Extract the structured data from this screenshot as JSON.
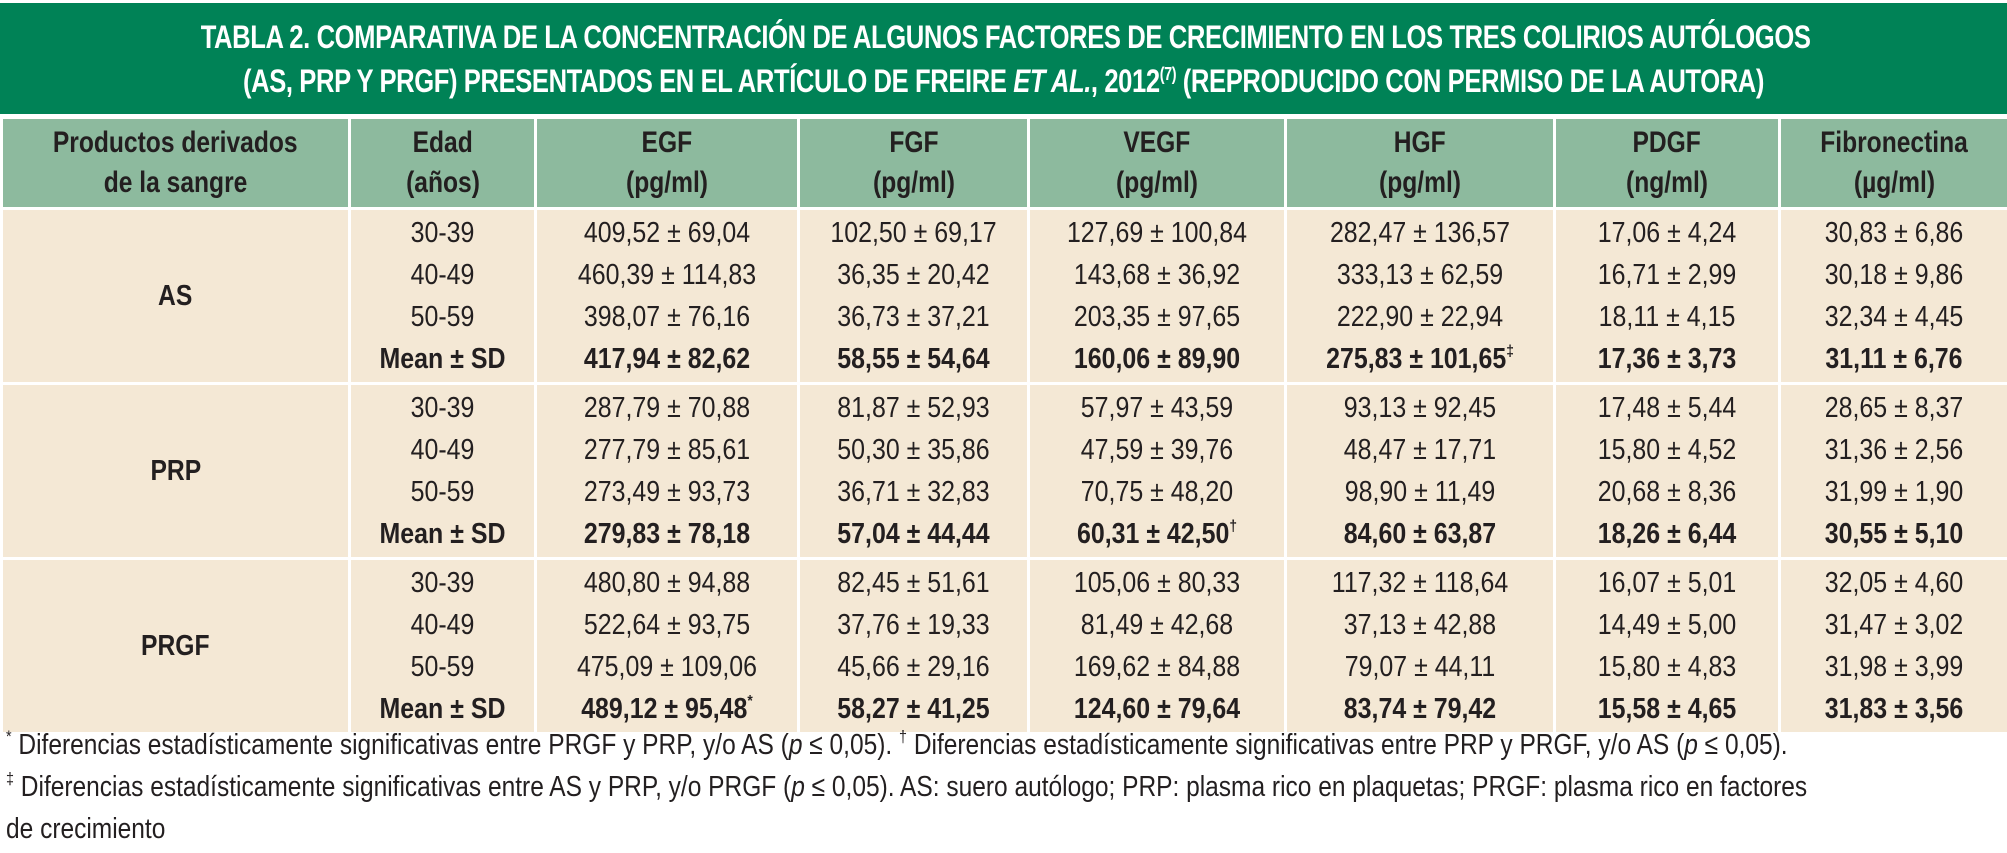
{
  "title": {
    "line1": "TABLA 2. COMPARATIVA DE LA CONCENTRACIÓN DE ALGUNOS FACTORES DE CRECIMIENTO EN LOS TRES COLIRIOS AUTÓLOGOS",
    "line2_before_italic": "(AS, PRP Y PRGF) PRESENTADOS EN EL ARTÍCULO DE FREIRE ",
    "line2_italic": "ET AL.",
    "line2_year": ", 2012",
    "line2_ref": "(7)",
    "line2_after": " (REPRODUCIDO CON PERMISO DE LA AUTORA)"
  },
  "colors": {
    "title_bg": "#008256",
    "header_bg": "#8dba9e",
    "body_bg": "#f4e8d5",
    "text": "#231f20"
  },
  "columns": [
    {
      "line1": "Productos derivados",
      "line2": "de la sangre"
    },
    {
      "line1": "Edad",
      "line2": "(años)"
    },
    {
      "line1": "EGF",
      "line2": "(pg/ml)"
    },
    {
      "line1": "FGF",
      "line2": "(pg/ml)"
    },
    {
      "line1": "VEGF",
      "line2": "(pg/ml)"
    },
    {
      "line1": "HGF",
      "line2": "(pg/ml)"
    },
    {
      "line1": "PDGF",
      "line2": "(ng/ml)"
    },
    {
      "line1": "Fibronectina",
      "line2": "(µg/ml)"
    }
  ],
  "groups": [
    {
      "name": "AS",
      "ages": [
        "30-39",
        "40-49",
        "50-59",
        "Mean ± SD"
      ],
      "EGF": [
        "409,52 ± 69,04",
        "460,39 ± 114,83",
        "398,07 ± 76,16",
        "417,94 ± 82,62"
      ],
      "FGF": [
        "102,50 ± 69,17",
        "36,35 ± 20,42",
        "36,73 ± 37,21",
        "58,55 ± 54,64"
      ],
      "VEGF": [
        "127,69 ± 100,84",
        "143,68 ± 36,92",
        "203,35 ± 97,65",
        "160,06 ± 89,90"
      ],
      "HGF": [
        "282,47 ± 136,57",
        "333,13 ± 62,59",
        "222,90 ± 22,94",
        "275,83 ± 101,65"
      ],
      "PDGF": [
        "17,06 ± 4,24",
        "16,71 ± 2,99",
        "18,11 ± 4,15",
        "17,36 ± 3,73"
      ],
      "Fibronectina": [
        "30,83 ± 6,86",
        "30,18 ± 9,86",
        "32,34 ± 4,45",
        "31,11 ± 6,76"
      ],
      "marks": {
        "EGF": "",
        "FGF": "",
        "VEGF": "",
        "HGF": "‡",
        "PDGF": "",
        "Fibronectina": ""
      }
    },
    {
      "name": "PRP",
      "ages": [
        "30-39",
        "40-49",
        "50-59",
        "Mean ± SD"
      ],
      "EGF": [
        "287,79 ± 70,88",
        "277,79 ± 85,61",
        "273,49 ± 93,73",
        "279,83 ± 78,18"
      ],
      "FGF": [
        "81,87 ± 52,93",
        "50,30 ± 35,86",
        "36,71 ± 32,83",
        "57,04 ± 44,44"
      ],
      "VEGF": [
        "57,97 ± 43,59",
        "47,59 ± 39,76",
        "70,75 ± 48,20",
        "60,31 ± 42,50"
      ],
      "HGF": [
        "93,13 ± 92,45",
        "48,47 ± 17,71",
        "98,90 ± 11,49",
        "84,60 ± 63,87"
      ],
      "PDGF": [
        "17,48 ± 5,44",
        "15,80 ± 4,52",
        "20,68 ± 8,36",
        "18,26 ± 6,44"
      ],
      "Fibronectina": [
        "28,65 ± 8,37",
        "31,36 ± 2,56",
        "31,99 ± 1,90",
        "30,55 ± 5,10"
      ],
      "marks": {
        "EGF": "",
        "FGF": "",
        "VEGF": "†",
        "HGF": "",
        "PDGF": "",
        "Fibronectina": ""
      }
    },
    {
      "name": "PRGF",
      "ages": [
        "30-39",
        "40-49",
        "50-59",
        "Mean ± SD"
      ],
      "EGF": [
        "480,80 ± 94,88",
        "522,64 ± 93,75",
        "475,09 ± 109,06",
        "489,12 ± 95,48"
      ],
      "FGF": [
        "82,45 ± 51,61",
        "37,76 ± 19,33",
        "45,66 ± 29,16",
        "58,27 ± 41,25"
      ],
      "VEGF": [
        "105,06 ± 80,33",
        "81,49 ± 42,68",
        "169,62 ± 84,88",
        "124,60 ± 79,64"
      ],
      "HGF": [
        "117,32 ± 118,64",
        "37,13 ± 42,88",
        "79,07 ± 44,11",
        "83,74 ± 79,42"
      ],
      "PDGF": [
        "16,07 ± 5,01",
        "14,49 ± 5,00",
        "15,80 ± 4,83",
        "15,58 ± 4,65"
      ],
      "Fibronectina": [
        "32,05 ± 4,60",
        "31,47 ± 3,02",
        "31,98 ± 3,99",
        "31,83 ± 3,56"
      ],
      "marks": {
        "EGF": "*",
        "FGF": "",
        "VEGF": "",
        "HGF": "",
        "PDGF": "",
        "Fibronectina": ""
      }
    }
  ],
  "footnotes": {
    "l1_sym1": "*",
    "l1_text1a": " Diferencias estadísticamente significativas entre PRGF y PRP, y/o AS (",
    "l1_p1": "p",
    "l1_text1b": " ≤ 0,05). ",
    "l1_sym2": "†",
    "l1_text2a": " Diferencias estadísticamente significativas entre PRP y PRGF, y/o AS (",
    "l1_p2": "p",
    "l1_text2b": " ≤ 0,05).",
    "l2_sym": "‡",
    "l2_text_a": " Diferencias estadísticamente significativas entre AS y PRP, y/o PRGF (",
    "l2_p": "p",
    "l2_text_b": " ≤ 0,05). AS: suero autólogo; PRP: plasma rico en plaquetas; PRGF: plasma rico en factores",
    "l3_text": "de crecimiento"
  }
}
